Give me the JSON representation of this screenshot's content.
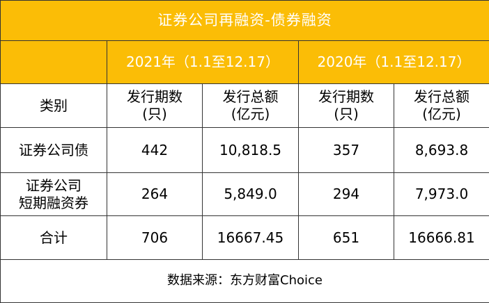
{
  "title": "证券公司再融资-债券融资",
  "table": {
    "group_headers": [
      "2021年（1.1至12.17）",
      "2020年（1.1至12.17）"
    ],
    "column_headers": [
      "类别",
      "发行期数\n(只)",
      "发行总额\n(亿元)",
      "发行期数\n(只)",
      "发行总额\n(亿元)"
    ],
    "rows": [
      [
        "证券公司债",
        "442",
        "10,818.5",
        "357",
        "8,693.8"
      ],
      [
        "证券公司\n短期融资券",
        "264",
        "5,849.0",
        "294",
        "7,973.0"
      ],
      [
        "合计",
        "706",
        "16667.45",
        "651",
        "16666.81"
      ]
    ]
  },
  "source": "数据来源：东方财富Choice"
}
